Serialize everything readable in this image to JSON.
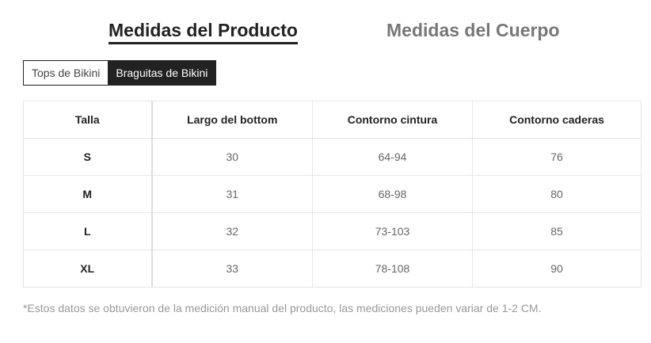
{
  "main_tabs": {
    "product": "Medidas del Producto",
    "body": "Medidas del Cuerpo"
  },
  "sub_tabs": {
    "tops": "Tops de Bikini",
    "bottoms": "Braguitas de Bikini"
  },
  "table": {
    "headers": [
      "Talla",
      "Largo del bottom",
      "Contorno cintura",
      "Contorno caderas"
    ],
    "rows": [
      [
        "S",
        "30",
        "64-94",
        "76"
      ],
      [
        "M",
        "31",
        "68-98",
        "80"
      ],
      [
        "L",
        "32",
        "73-103",
        "85"
      ],
      [
        "XL",
        "33",
        "78-108",
        "90"
      ]
    ]
  },
  "note": "*Estos datos se obtuvieron de la medición manual del producto, las mediciones pueden variar de 1-2 CM."
}
